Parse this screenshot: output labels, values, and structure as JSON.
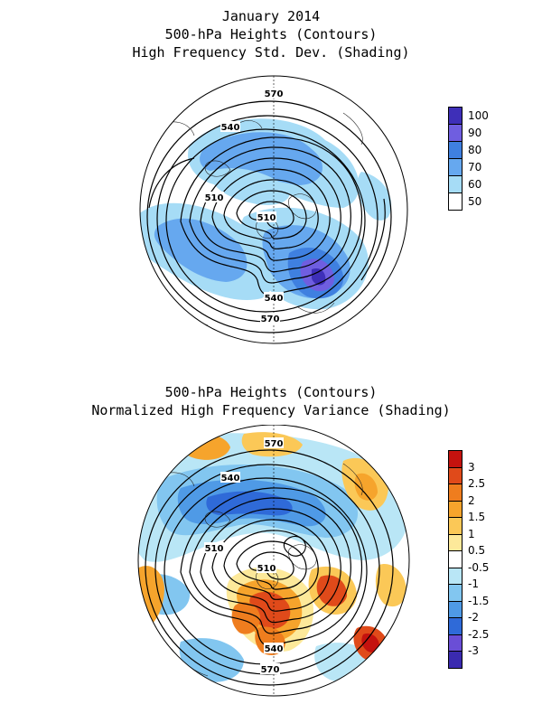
{
  "top_panel": {
    "title_lines": [
      "January 2014",
      "500-hPa Heights (Contours)",
      "High Frequency Std. Dev. (Shading)"
    ],
    "contour_labels": [
      {
        "text": "570",
        "pos": "top"
      },
      {
        "text": "540",
        "pos": "upper-left"
      },
      {
        "text": "510",
        "pos": "left"
      },
      {
        "text": "510",
        "pos": "center"
      },
      {
        "text": "540",
        "pos": "bottom"
      },
      {
        "text": "570",
        "pos": "bottom-edge"
      }
    ],
    "colorbar": {
      "labels": [
        "100",
        "90",
        "80",
        "70",
        "60",
        "50"
      ],
      "colors": [
        "#3e2fb8",
        "#6f5ee0",
        "#3f80e0",
        "#66a8ef",
        "#a6dcf6",
        "#ffffff"
      ]
    }
  },
  "bottom_panel": {
    "title_lines": [
      "500-hPa Heights (Contours)",
      "Normalized High Frequency Variance (Shading)"
    ],
    "contour_labels": [
      {
        "text": "570",
        "pos": "top"
      },
      {
        "text": "540",
        "pos": "upper-left"
      },
      {
        "text": "510",
        "pos": "left"
      },
      {
        "text": "510",
        "pos": "center"
      },
      {
        "text": "540",
        "pos": "bottom"
      },
      {
        "text": "570",
        "pos": "bottom-edge"
      }
    ],
    "colorbar": {
      "labels": [
        "3",
        "2.5",
        "2",
        "1.5",
        "1",
        "0.5",
        "-0.5",
        "-1",
        "-1.5",
        "-2",
        "-2.5",
        "-3"
      ],
      "colors": [
        "#c4120e",
        "#e04a1a",
        "#ef7d1e",
        "#f6a42c",
        "#fbc857",
        "#fde99a",
        "#ffffff",
        "#b9e6f6",
        "#82c6f0",
        "#4f9ae6",
        "#2f6ad8",
        "#6a4ed6",
        "#3a2ab0"
      ]
    }
  }
}
